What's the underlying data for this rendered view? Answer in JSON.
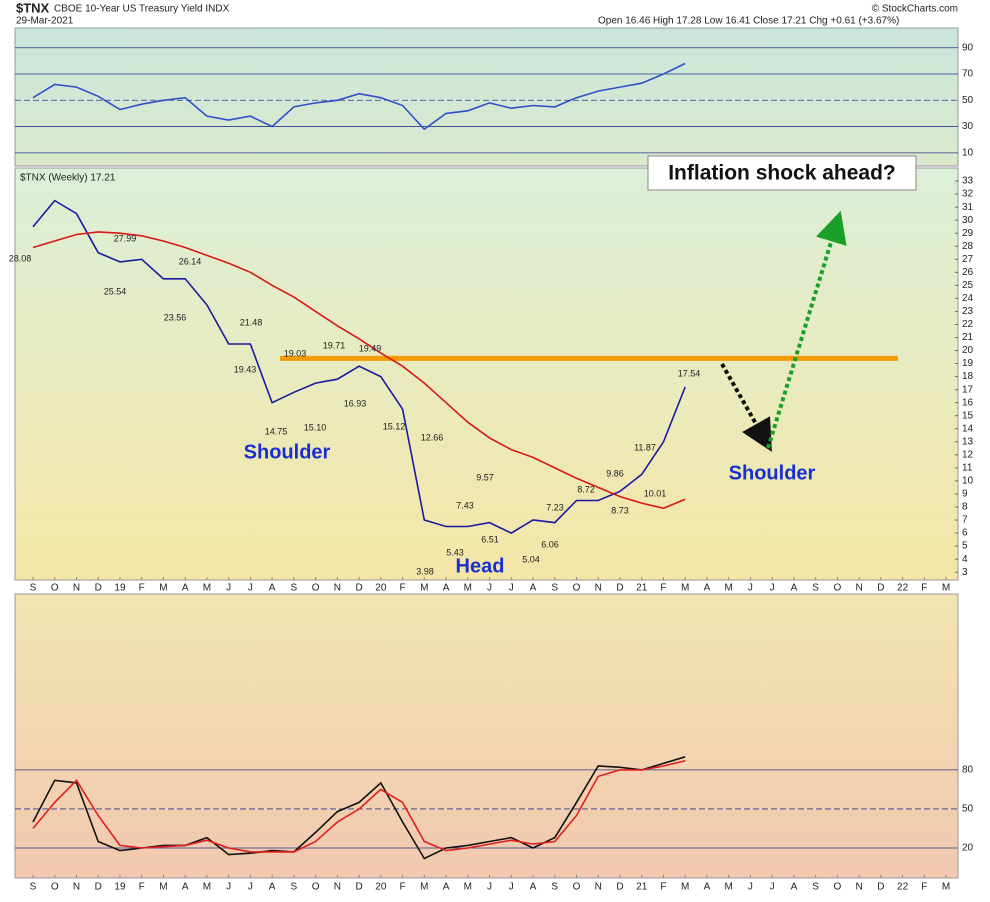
{
  "header": {
    "symbol": "$TNX",
    "name": "CBOE 10-Year US Treasury Yield INDX",
    "date": "29-Mar-2021",
    "quote": "Open 16.46  High 17.28  Low 16.41  Close 17.21  Chg +0.61 (+3.67%)",
    "source": "© StockCharts.com",
    "series_label": "$TNX (Weekly) 17.21",
    "callout": "Inflation shock ahead?",
    "left_shoulder": "Shoulder",
    "head": "Head",
    "right_shoulder": "Shoulder"
  },
  "chart_data": [
    {
      "type": "line",
      "ylim": [
        0,
        105
      ],
      "yticks": [
        10,
        30,
        50,
        70,
        90
      ],
      "grid": true,
      "series": [
        {
          "color": "#3050c8",
          "values": [
            52,
            62,
            60,
            53,
            43,
            47,
            50,
            52,
            38,
            35,
            38,
            30,
            45,
            48,
            50,
            55,
            52,
            46,
            28,
            40,
            42,
            48,
            44,
            46,
            45,
            52,
            57,
            60,
            63,
            70,
            78,
            null,
            null,
            null,
            null,
            null,
            null,
            null,
            null,
            null,
            null,
            null,
            null
          ]
        }
      ]
    },
    {
      "type": "line",
      "ylim": [
        2.4,
        34
      ],
      "yticks": [
        3,
        4,
        5,
        6,
        7,
        8,
        9,
        10,
        11,
        12,
        13,
        14,
        15,
        16,
        17,
        18,
        19,
        20,
        21,
        22,
        23,
        24,
        25,
        26,
        27,
        28,
        29,
        30,
        31,
        32,
        33
      ],
      "grid": false,
      "categories": [
        "S",
        "O",
        "N",
        "D",
        "19",
        "F",
        "M",
        "A",
        "M",
        "J",
        "J",
        "A",
        "S",
        "O",
        "N",
        "D",
        "20",
        "F",
        "M",
        "A",
        "M",
        "J",
        "J",
        "A",
        "S",
        "O",
        "N",
        "D",
        "21",
        "F",
        "M",
        "A",
        "M",
        "J",
        "J",
        "A",
        "S",
        "O",
        "N",
        "D",
        "22",
        "F",
        "M"
      ],
      "series": [
        {
          "color": "#1a1aa0",
          "values": [
            29.5,
            31.5,
            30.5,
            27.5,
            26.8,
            27,
            25.5,
            25.5,
            23.5,
            20.5,
            20.5,
            16,
            16.8,
            17.5,
            17.8,
            18.8,
            18,
            15.5,
            7,
            6.5,
            6.5,
            6.8,
            6,
            7,
            6.8,
            8.5,
            8.5,
            9.2,
            10.5,
            13,
            17.2,
            null,
            null,
            null,
            null,
            null,
            null,
            null,
            null,
            null,
            null,
            null,
            null
          ]
        },
        {
          "color": "#d81818",
          "values": [
            27.9,
            28.4,
            28.9,
            29.1,
            29,
            28.8,
            28.4,
            27.9,
            27.3,
            26.7,
            26,
            25,
            24.1,
            23,
            21.9,
            20.9,
            19.8,
            18.8,
            17.5,
            16,
            14.5,
            13.3,
            12.4,
            11.8,
            11,
            10.2,
            9.5,
            8.8,
            8.3,
            7.9,
            8.6,
            null,
            null,
            null,
            null,
            null,
            null,
            null,
            null,
            null,
            null,
            null,
            null
          ]
        }
      ],
      "hline": {
        "value": 19.4,
        "color": "#f59a00"
      },
      "price_labels": [
        28.08,
        27.99,
        25.54,
        26.14,
        23.56,
        21.48,
        19.43,
        19.03,
        19.71,
        19.49,
        14.75,
        {
          "value": 15.1,
          "label": "15.10"
        },
        16.93,
        15.12,
        12.66,
        3.98,
        9.57,
        7.43,
        5.43,
        6.51,
        7.23,
        5.04,
        6.06,
        8.72,
        8.73,
        9.86,
        10.01,
        11.87,
        17.54
      ]
    },
    {
      "type": "line",
      "ylim": [
        -3,
        215
      ],
      "yticks": [
        20,
        50,
        80
      ],
      "grid": true,
      "categories": [
        "S",
        "O",
        "N",
        "D",
        "19",
        "F",
        "M",
        "A",
        "M",
        "J",
        "J",
        "A",
        "S",
        "O",
        "N",
        "D",
        "20",
        "F",
        "M",
        "A",
        "M",
        "J",
        "J",
        "A",
        "S",
        "O",
        "N",
        "D",
        "21",
        "F",
        "M",
        "A",
        "M",
        "J",
        "J",
        "A",
        "S",
        "O",
        "N",
        "D",
        "22",
        "F",
        "M"
      ],
      "series": [
        {
          "color": "#111111",
          "values": [
            40,
            72,
            70,
            25,
            18,
            20,
            22,
            22,
            28,
            15,
            16,
            18,
            17,
            32,
            48,
            55,
            70,
            40,
            12,
            20,
            22,
            25,
            28,
            20,
            28,
            55,
            83,
            82,
            80,
            85,
            90,
            null,
            null,
            null,
            null,
            null,
            null,
            null,
            null,
            null,
            null,
            null,
            null
          ]
        },
        {
          "color": "#e02020",
          "values": [
            35,
            55,
            72,
            45,
            22,
            20,
            21,
            22,
            26,
            20,
            17,
            17,
            17,
            25,
            40,
            50,
            65,
            55,
            25,
            18,
            20,
            23,
            26,
            23,
            25,
            45,
            75,
            80,
            80,
            83,
            87,
            null,
            null,
            null,
            null,
            null,
            null,
            null,
            null,
            null,
            null,
            null,
            null
          ]
        }
      ]
    }
  ]
}
